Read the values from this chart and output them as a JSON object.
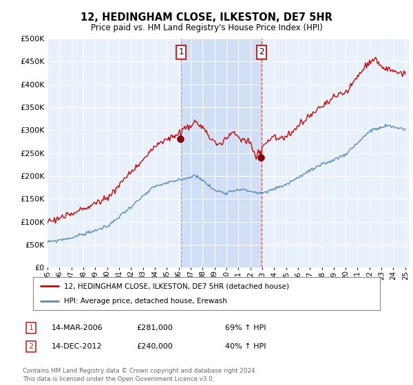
{
  "title": "12, HEDINGHAM CLOSE, ILKESTON, DE7 5HR",
  "subtitle": "Price paid vs. HM Land Registry's House Price Index (HPI)",
  "sale1_date": "14-MAR-2006",
  "sale1_price": 281000,
  "sale1_hpi": "69% ↑ HPI",
  "sale1_label": "1",
  "sale2_date": "14-DEC-2012",
  "sale2_price": 240000,
  "sale2_hpi": "40% ↑ HPI",
  "sale2_label": "2",
  "legend_line1": "12, HEDINGHAM CLOSE, ILKESTON, DE7 5HR (detached house)",
  "legend_line2": "HPI: Average price, detached house, Erewash",
  "footnote": "Contains HM Land Registry data © Crown copyright and database right 2024.\nThis data is licensed under the Open Government Licence v3.0.",
  "line_color_red": "#cc0000",
  "line_color_blue": "#5588bb",
  "shade_color": "#ccddf5",
  "background_plot": "#e8f0fa",
  "background_fig": "#ffffff",
  "ylim": [
    0,
    500000
  ],
  "yticks": [
    0,
    50000,
    100000,
    150000,
    200000,
    250000,
    300000,
    350000,
    400000,
    450000,
    500000
  ],
  "sale1_year": 2006.2,
  "sale2_year": 2012.95,
  "vline1_color": "#aaaaaa",
  "vline2_color": "#dd4444"
}
